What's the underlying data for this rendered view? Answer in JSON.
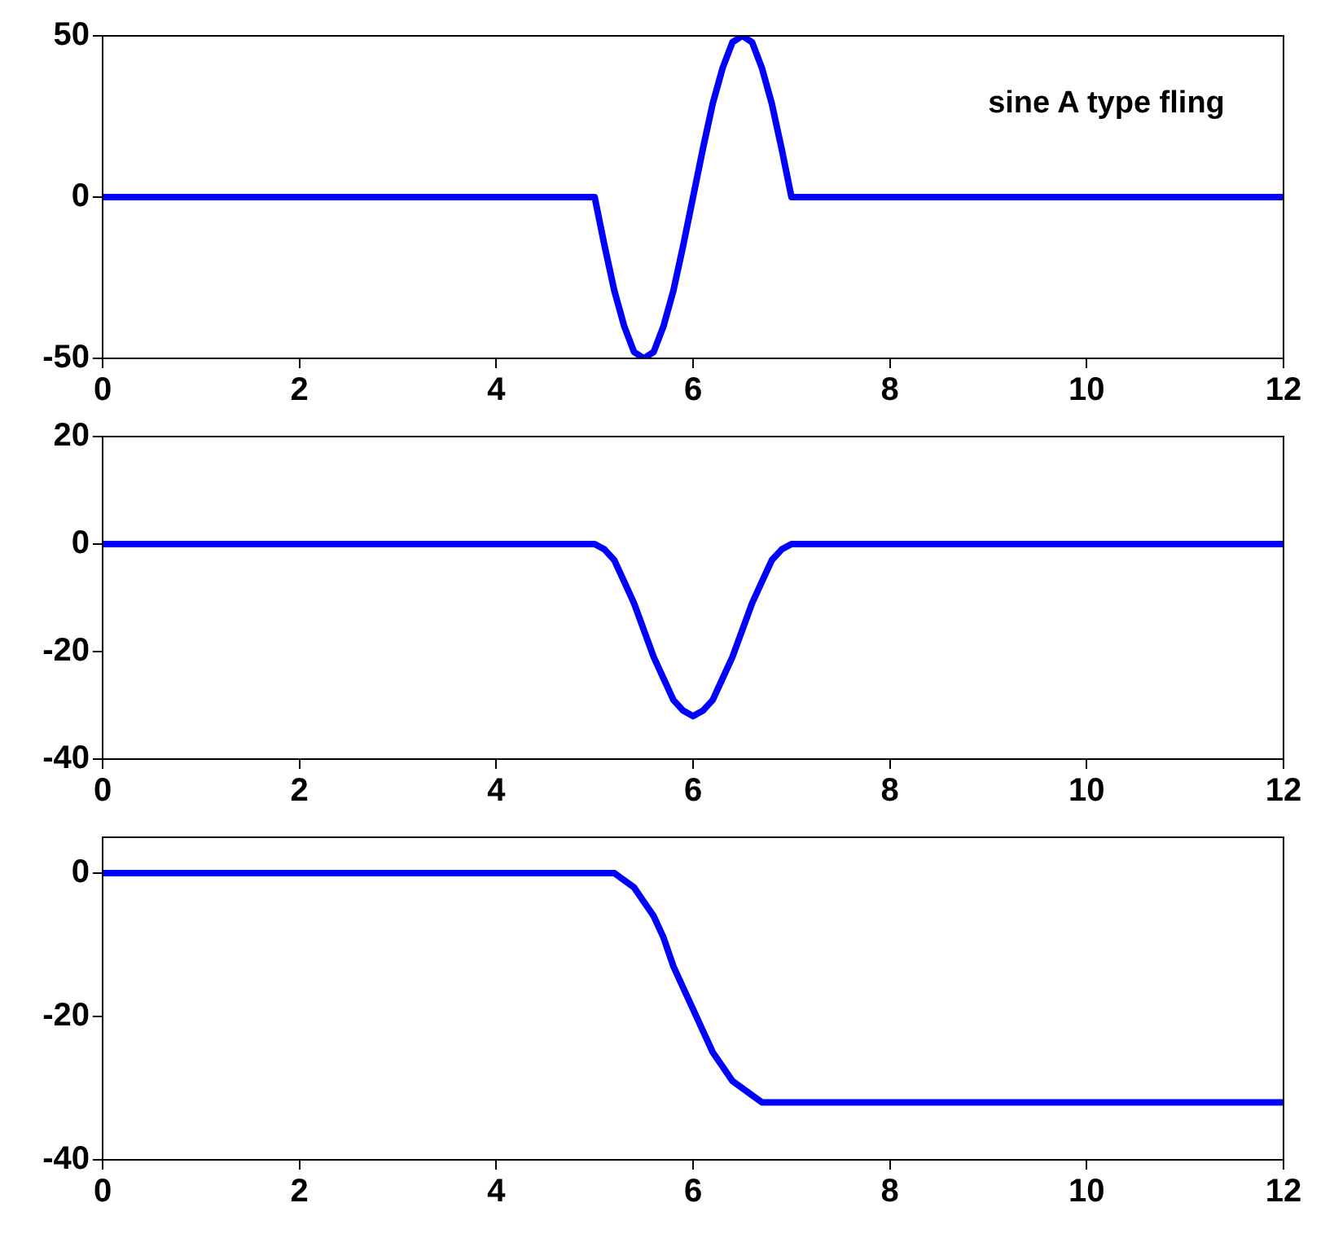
{
  "chart_data": [
    {
      "type": "line",
      "x": [
        0,
        5,
        5.1,
        5.2,
        5.3,
        5.4,
        5.5,
        5.6,
        5.7,
        5.8,
        5.9,
        6,
        6.1,
        6.2,
        6.3,
        6.4,
        6.5,
        6.6,
        6.7,
        6.8,
        6.9,
        7,
        12
      ],
      "series": [
        {
          "color": "#0000ff",
          "values": [
            0,
            0,
            -15,
            -29,
            -40,
            -48,
            -50,
            -48,
            -40,
            -29,
            -15,
            0,
            15,
            29,
            40,
            48,
            50,
            48,
            40,
            29,
            15,
            0,
            0
          ]
        }
      ],
      "xlim": [
        0,
        12
      ],
      "xticks": [
        0,
        2,
        4,
        6,
        8,
        10,
        12
      ],
      "ylim": [
        -50,
        50
      ],
      "yticks": [
        -50,
        0,
        50
      ],
      "grid": false,
      "legend": false,
      "marker": "none",
      "line_style": "solid",
      "annotations": [
        "sine A type fling"
      ]
    },
    {
      "type": "line",
      "x": [
        0,
        5,
        5.1,
        5.2,
        5.3,
        5.4,
        5.5,
        5.6,
        5.7,
        5.8,
        5.9,
        6,
        6.1,
        6.2,
        6.3,
        6.4,
        6.5,
        6.6,
        6.7,
        6.8,
        6.9,
        7,
        12
      ],
      "series": [
        {
          "color": "#0000ff",
          "values": [
            0,
            0,
            -1,
            -3,
            -7,
            -11,
            -16,
            -21,
            -25,
            -29,
            -31,
            -32,
            -31,
            -29,
            -25,
            -21,
            -16,
            -11,
            -7,
            -3,
            -1,
            0,
            0
          ]
        }
      ],
      "xlim": [
        0,
        12
      ],
      "xticks": [
        0,
        2,
        4,
        6,
        8,
        10,
        12
      ],
      "ylim": [
        -40,
        20
      ],
      "yticks": [
        -40,
        -20,
        0,
        20
      ],
      "grid": false,
      "legend": false,
      "marker": "none",
      "line_style": "solid"
    },
    {
      "type": "line",
      "x": [
        0,
        5.2,
        5.3,
        5.4,
        5.5,
        5.6,
        5.7,
        5.8,
        5.9,
        6,
        6.1,
        6.2,
        6.3,
        6.4,
        6.5,
        6.6,
        6.7,
        6.8,
        12
      ],
      "series": [
        {
          "color": "#0000ff",
          "values": [
            0,
            0,
            -1,
            -2,
            -4,
            -6,
            -9,
            -13,
            -16,
            -19,
            -22,
            -25,
            -27,
            -29,
            -30,
            -31,
            -32,
            -32,
            -32
          ]
        }
      ],
      "xlim": [
        0,
        12
      ],
      "xticks": [
        0,
        2,
        4,
        6,
        8,
        10,
        12
      ],
      "ylim": [
        -40,
        5
      ],
      "yticks": [
        -40,
        -20,
        0
      ],
      "grid": false,
      "legend": false,
      "marker": "none",
      "line_style": "solid"
    }
  ]
}
